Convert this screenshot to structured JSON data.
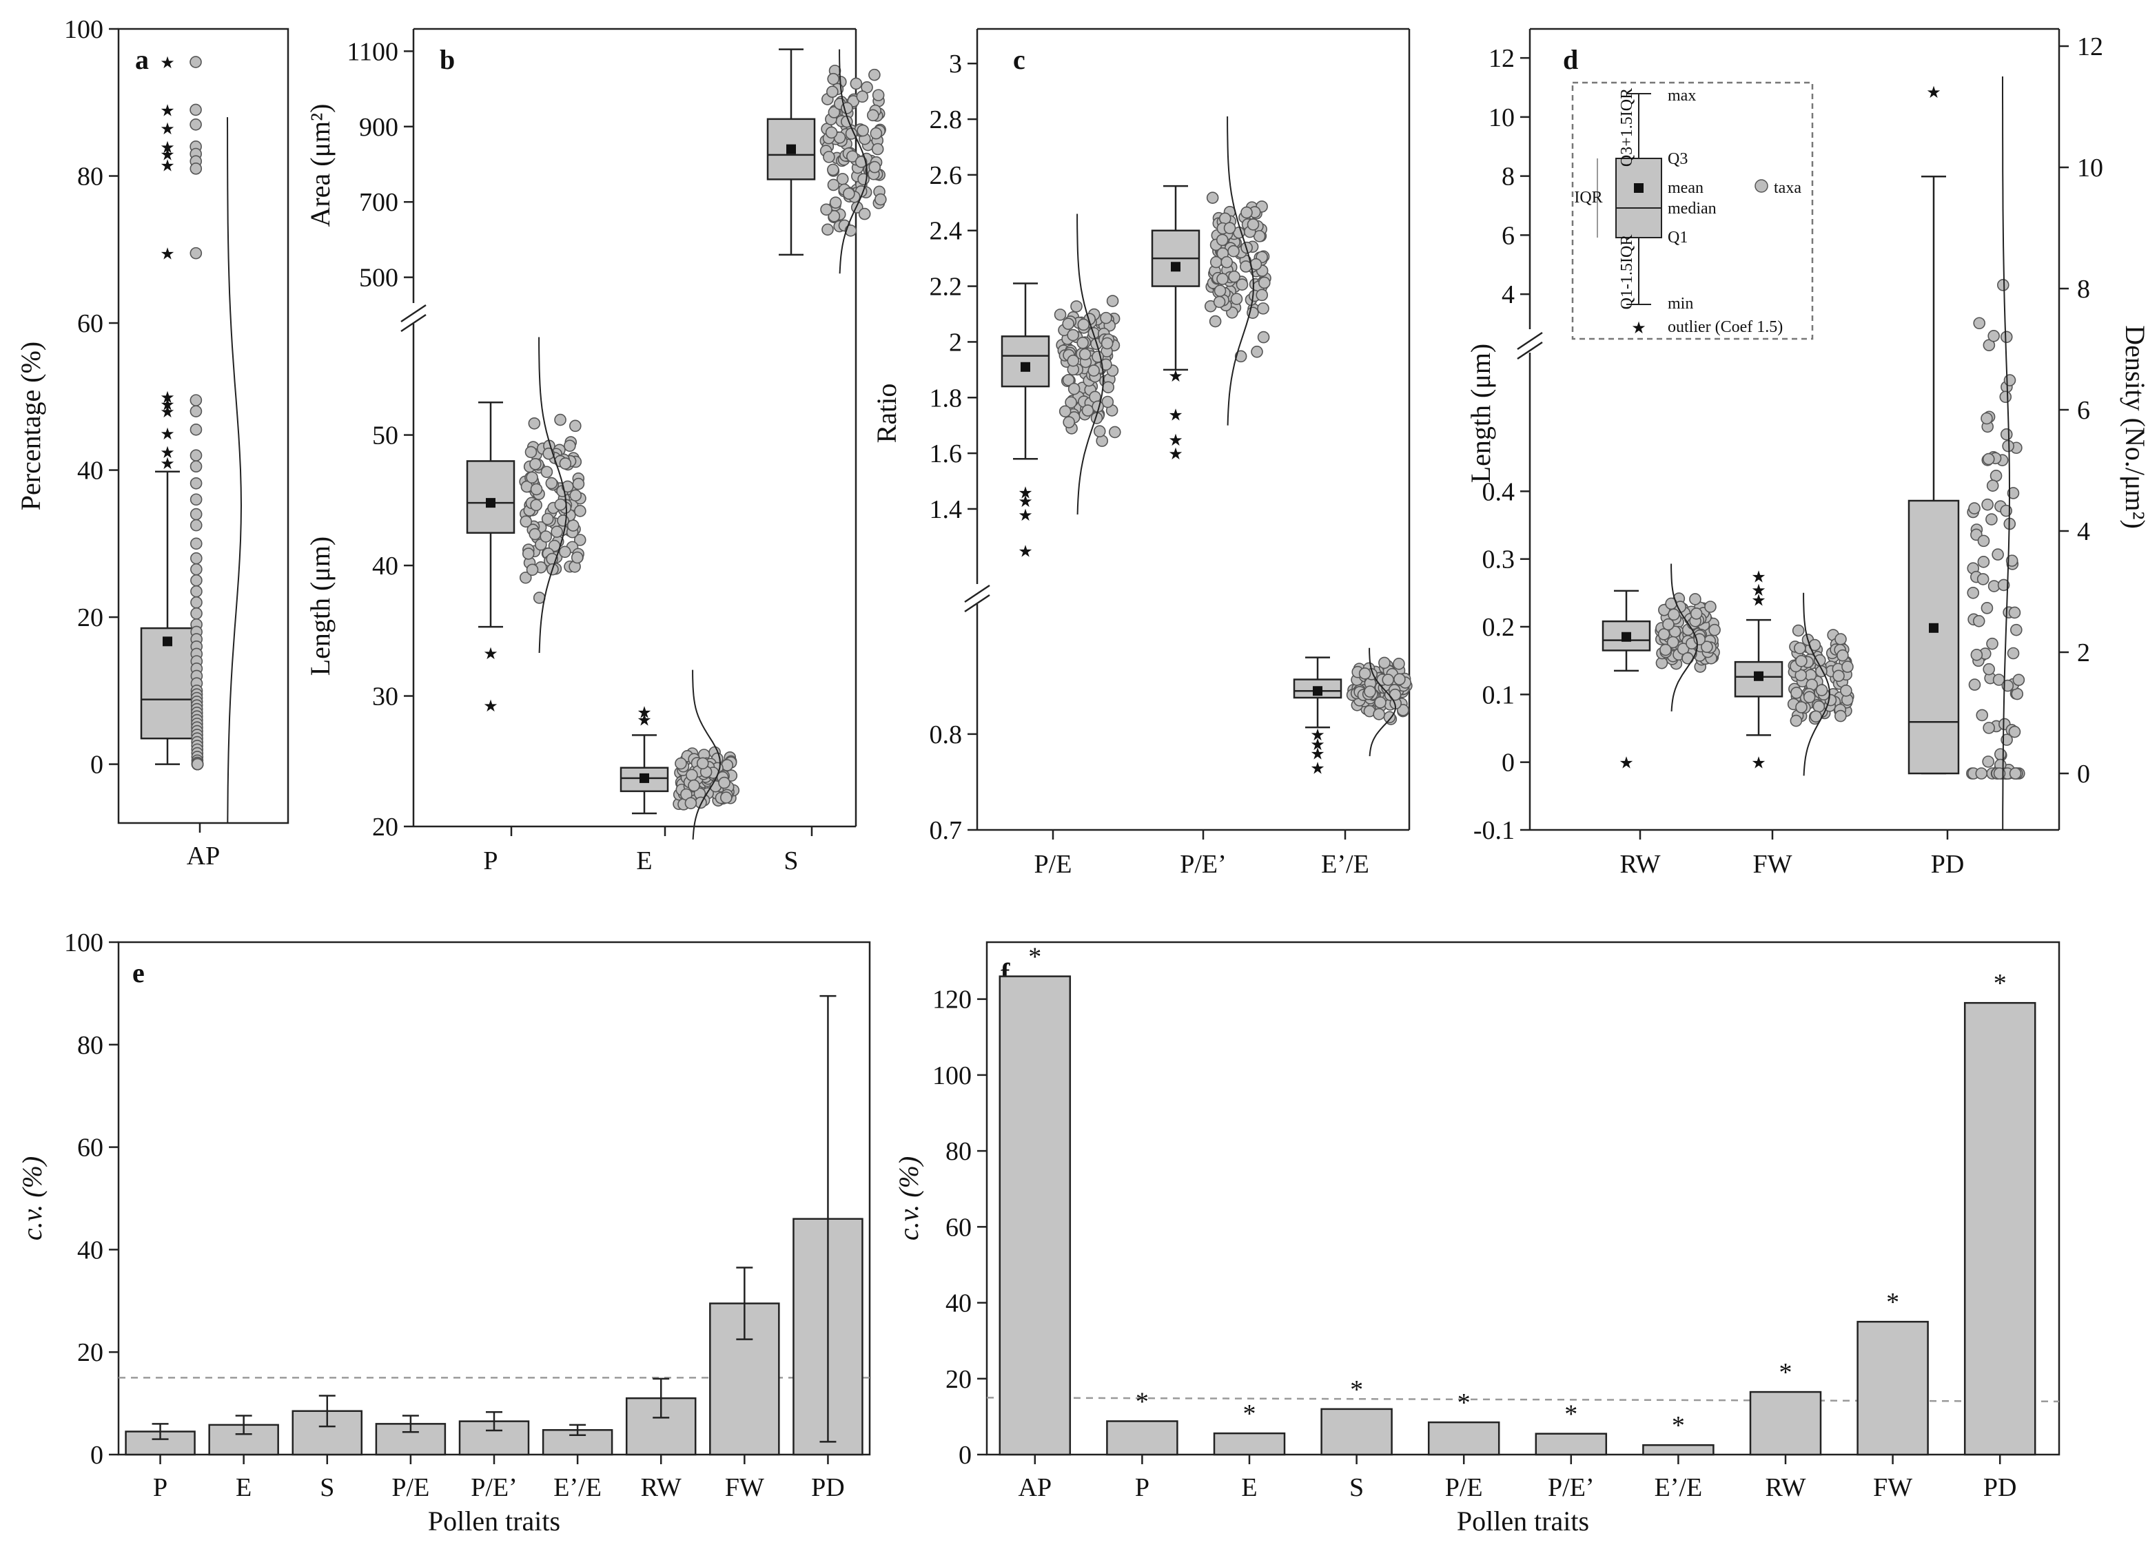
{
  "figure": {
    "colors": {
      "fill": "#c4c4c4",
      "point": "#bdbdbd",
      "stroke": "#222222",
      "dash": "#9a9a9a"
    }
  },
  "chart_data": [
    {
      "id": "a",
      "type": "box",
      "label": "a",
      "ylabel": "Percentage (%)",
      "ylim": [
        -8,
        100
      ],
      "yticks": [
        0,
        20,
        40,
        60,
        80,
        100
      ],
      "categories": [
        "AP"
      ],
      "boxes": [
        {
          "category": "AP",
          "min": 0,
          "q1": 3.5,
          "median": 8.8,
          "mean": 16.7,
          "q3": 18.5,
          "whisker_high": 39.8,
          "outliers": [
            41,
            42.5,
            45,
            48,
            49,
            50,
            69.5,
            81.5,
            83,
            84,
            86.5,
            89,
            95.5
          ],
          "points": [
            95.5,
            89,
            87,
            84,
            83,
            82,
            81,
            69.5,
            49.5,
            48,
            45.5,
            42,
            40.5,
            38.2,
            36,
            34,
            32.5,
            30,
            28,
            26.5,
            25,
            23.5,
            22,
            20.5,
            19,
            18,
            17,
            16,
            15,
            14,
            13,
            12,
            11,
            10,
            9.5,
            9,
            8.5,
            8,
            7.5,
            7,
            6.5,
            6,
            5.5,
            5,
            4.5,
            4,
            3.5,
            3,
            2.5,
            2,
            1.5,
            1,
            0.5,
            0.2,
            0,
            0,
            0,
            0,
            0,
            0
          ]
        }
      ]
    },
    {
      "id": "b",
      "type": "box",
      "label": "b",
      "ylabel_top": "Area (μm²)",
      "ylabel_bottom": "Length (μm)",
      "top_ylim": [
        450,
        1150
      ],
      "top_yticks": [
        500,
        700,
        900,
        1100
      ],
      "bottom_ylim": [
        20,
        58
      ],
      "bottom_yticks": [
        20,
        30,
        40,
        50
      ],
      "categories": [
        "P",
        "E",
        "S"
      ],
      "boxes": [
        {
          "category": "P",
          "min": 35.3,
          "q1": 42.5,
          "median": 44.8,
          "mean": 44.8,
          "q3": 48,
          "whisker_high": 52.5,
          "outliers": [
            29.3,
            33.3
          ]
        },
        {
          "category": "E",
          "min": 21,
          "q1": 22.7,
          "median": 23.7,
          "mean": 23.7,
          "q3": 24.5,
          "whisker_high": 27,
          "outliers": [
            28.2,
            28.8
          ]
        },
        {
          "category": "S",
          "min": 560,
          "q1": 760,
          "median": 825,
          "mean": 840,
          "q3": 920,
          "whisker_high": 1105,
          "outliers": []
        }
      ]
    },
    {
      "id": "c",
      "type": "box",
      "label": "c",
      "ylabel": "Ratio",
      "top_ylim": [
        1.15,
        3.05
      ],
      "top_yticks": [
        1.4,
        1.6,
        1.8,
        2.0,
        2.2,
        2.4,
        2.6,
        2.8,
        3.0
      ],
      "bottom_ylim": [
        0.7,
        0.93
      ],
      "bottom_yticks": [
        0.7,
        0.8
      ],
      "categories": [
        "P/E",
        "P/E’",
        "E’/E"
      ],
      "boxes": [
        {
          "category": "P/E",
          "min": 1.58,
          "q1": 1.84,
          "median": 1.95,
          "mean": 1.91,
          "q3": 2.02,
          "whisker_high": 2.21,
          "outliers": [
            1.25,
            1.38,
            1.43,
            1.46
          ]
        },
        {
          "category": "P/E’",
          "min": 1.9,
          "q1": 2.2,
          "median": 2.3,
          "mean": 2.27,
          "q3": 2.4,
          "whisker_high": 2.56,
          "outliers": [
            1.6,
            1.65,
            1.74,
            1.88
          ]
        },
        {
          "category": "E’/E",
          "min": 0.807,
          "q1": 0.838,
          "median": 0.845,
          "mean": 0.845,
          "q3": 0.857,
          "whisker_high": 0.88,
          "outliers": [
            0.765,
            0.78,
            0.79,
            0.8
          ]
        }
      ]
    },
    {
      "id": "d",
      "type": "box",
      "label": "d",
      "ylabel": "Length (μm)",
      "y2label": "Density (No./μm²)",
      "top_ylim": [
        3,
        12.4
      ],
      "top_yticks": [
        4,
        6,
        8,
        10,
        12
      ],
      "bottom_ylim": [
        -0.1,
        0.5
      ],
      "bottom_yticks": [
        -0.1,
        0.0,
        0.1,
        0.2,
        0.3,
        0.4
      ],
      "y2ticks": [
        0,
        2,
        4,
        6,
        8,
        10,
        12
      ],
      "categories": [
        "RW",
        "FW",
        "PD"
      ],
      "boxes": [
        {
          "category": "RW",
          "min": 0.135,
          "q1": 0.165,
          "median": 0.18,
          "mean": 0.185,
          "q3": 0.208,
          "whisker_high": 0.253,
          "outliers": [
            0.0
          ]
        },
        {
          "category": "FW",
          "min": 0.04,
          "q1": 0.097,
          "median": 0.126,
          "mean": 0.127,
          "q3": 0.148,
          "whisker_high": 0.21,
          "outliers": [
            0.0,
            0.24,
            0.255,
            0.275
          ]
        },
        {
          "category": "PD",
          "axis": "density",
          "min": 0,
          "q1": 0,
          "median": 0.85,
          "mean": 2.4,
          "q3": 4.5,
          "whisker_high": 9.85,
          "outliers": [
            11.25
          ]
        }
      ],
      "legend": {
        "labels": [
          "max",
          "Q3",
          "mean",
          "median",
          "Q1",
          "min",
          "IQR",
          "taxa",
          "outlier (Coef 1.5)",
          "Q3+1.5IQR",
          "Q1-1.5IQR"
        ]
      }
    },
    {
      "id": "e",
      "type": "bar",
      "label": "e",
      "title": "",
      "xlabel": "Pollen  traits",
      "ylabel": "c.v.  (%)",
      "ylim": [
        0,
        100
      ],
      "yticks": [
        0,
        20,
        40,
        60,
        80,
        100
      ],
      "categories": [
        "P",
        "E",
        "S",
        "P/E",
        "P/E’",
        "E’/E",
        "RW",
        "FW",
        "PD"
      ],
      "values": [
        4.5,
        5.8,
        8.5,
        6,
        6.5,
        4.8,
        11,
        29.5,
        46
      ],
      "errors": [
        1.5,
        1.8,
        3,
        1.6,
        1.8,
        1,
        3.8,
        7,
        43.5
      ],
      "reference_line": 15
    },
    {
      "id": "f",
      "type": "bar",
      "label": "f",
      "title": "",
      "xlabel": "Pollen  traits",
      "ylabel": "c.v.  (%)",
      "ylim": [
        0,
        135
      ],
      "yticks": [
        0,
        20,
        40,
        60,
        80,
        100,
        120
      ],
      "categories": [
        "AP",
        "P",
        "E",
        "S",
        "P/E",
        "P/E’",
        "E’/E",
        "RW",
        "FW",
        "PD"
      ],
      "values": [
        126,
        8.8,
        5.6,
        12,
        8.5,
        5.5,
        2.5,
        16.5,
        35,
        119
      ],
      "significance": [
        "*",
        "*",
        "*",
        "*",
        "*",
        "*",
        "*",
        "*",
        "*",
        "*"
      ],
      "reference_line": [
        15,
        14
      ]
    }
  ]
}
